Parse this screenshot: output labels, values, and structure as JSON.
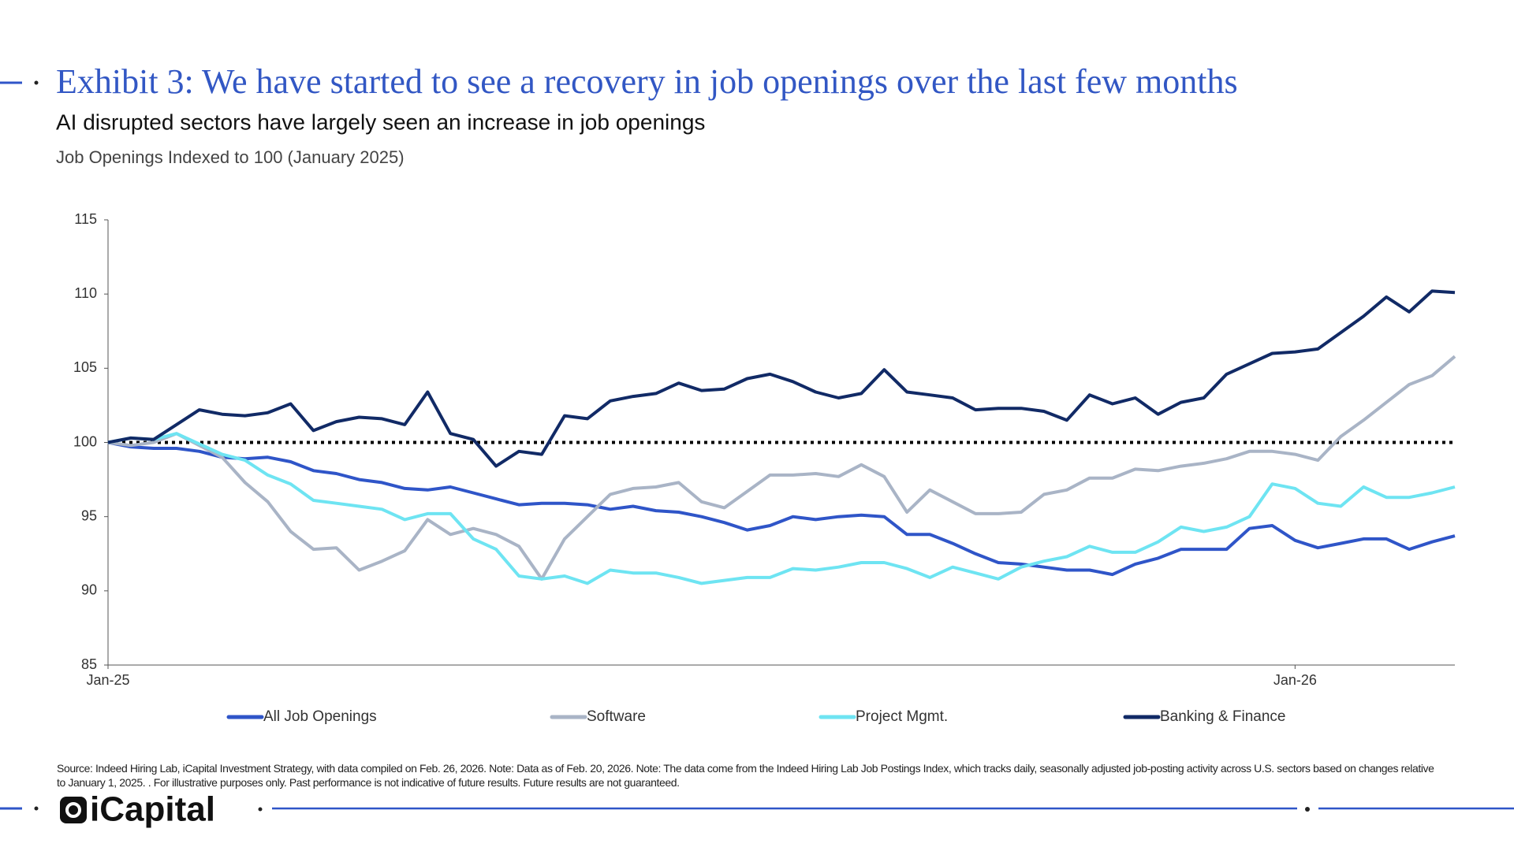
{
  "chart_data": {
    "type": "line",
    "title": "Exhibit 3: We have started to see a recovery in job openings over the last few months",
    "subtitle": "AI disrupted sectors have largely seen an increase in job openings",
    "y_label": "Job Openings Indexed to 100 (January 2025)",
    "categories": [
      "Jan-25",
      null,
      null,
      null,
      null,
      null,
      null,
      null,
      null,
      null,
      null,
      null,
      null,
      null,
      null,
      null,
      null,
      null,
      null,
      null,
      null,
      null,
      null,
      null,
      null,
      null,
      null,
      null,
      null,
      null,
      null,
      null,
      null,
      null,
      null,
      null,
      null,
      null,
      null,
      null,
      null,
      null,
      null,
      null,
      null,
      null,
      null,
      null,
      null,
      null,
      null,
      null,
      "Jan-26",
      null,
      null,
      null,
      null,
      null,
      null,
      null
    ],
    "series": [
      {
        "name": "All Job Openings",
        "color": "#2f55c8",
        "values": [
          100.0,
          99.7,
          99.6,
          99.6,
          99.4,
          99.0,
          98.9,
          99.0,
          98.7,
          98.1,
          97.9,
          97.5,
          97.3,
          96.9,
          96.8,
          97.0,
          96.6,
          96.2,
          95.8,
          95.9,
          95.9,
          95.8,
          95.5,
          95.7,
          95.4,
          95.3,
          95.0,
          94.6,
          94.1,
          94.4,
          95.0,
          94.8,
          95.0,
          95.1,
          95.0,
          93.8,
          93.8,
          93.2,
          92.5,
          91.9,
          91.8,
          91.6,
          91.4,
          91.4,
          91.1,
          91.8,
          92.2,
          92.8,
          92.8,
          92.8,
          94.2,
          94.4,
          93.4,
          92.9,
          93.2,
          93.5,
          93.5,
          92.8,
          93.3,
          93.7
        ]
      },
      {
        "name": "Software",
        "color": "#a9b4c6",
        "values": [
          100.0,
          99.8,
          100.0,
          100.6,
          99.8,
          99.0,
          97.3,
          96.0,
          94.0,
          92.8,
          92.9,
          91.4,
          92.0,
          92.7,
          94.8,
          93.8,
          94.2,
          93.8,
          93.0,
          90.8,
          93.5,
          95.0,
          96.5,
          96.9,
          97.0,
          97.3,
          96.0,
          95.6,
          96.7,
          97.8,
          97.8,
          97.9,
          97.7,
          98.5,
          97.7,
          95.3,
          96.8,
          96.0,
          95.2,
          95.2,
          95.3,
          96.5,
          96.8,
          97.6,
          97.6,
          98.2,
          98.1,
          98.4,
          98.6,
          98.9,
          99.4,
          99.4,
          99.2,
          98.8,
          100.4,
          101.5,
          102.7,
          103.9,
          104.5,
          105.8
        ]
      },
      {
        "name": "Project Mgmt.",
        "color": "#6ee4f2",
        "values": [
          100.0,
          100.3,
          100.2,
          100.6,
          99.9,
          99.2,
          98.8,
          97.8,
          97.2,
          96.1,
          95.9,
          95.7,
          95.5,
          94.8,
          95.2,
          95.2,
          93.5,
          92.8,
          91.0,
          90.8,
          91.0,
          90.5,
          91.4,
          91.2,
          91.2,
          90.9,
          90.5,
          90.7,
          90.9,
          90.9,
          91.5,
          91.4,
          91.6,
          91.9,
          91.9,
          91.5,
          90.9,
          91.6,
          91.2,
          90.8,
          91.6,
          92.0,
          92.3,
          93.0,
          92.6,
          92.6,
          93.3,
          94.3,
          94.0,
          94.3,
          95.0,
          97.2,
          96.9,
          95.9,
          95.7,
          97.0,
          96.3,
          96.3,
          96.6,
          97.0
        ]
      },
      {
        "name": "Banking & Finance",
        "color": "#112a66",
        "values": [
          100.0,
          100.3,
          100.2,
          101.2,
          102.2,
          101.9,
          101.8,
          102.0,
          102.6,
          100.8,
          101.4,
          101.7,
          101.6,
          101.2,
          103.4,
          100.6,
          100.2,
          98.4,
          99.4,
          99.2,
          101.8,
          101.6,
          102.8,
          103.1,
          103.3,
          104.0,
          103.5,
          103.6,
          104.3,
          104.6,
          104.1,
          103.4,
          103.0,
          103.3,
          104.9,
          103.4,
          103.2,
          103.0,
          102.2,
          102.3,
          102.3,
          102.1,
          101.5,
          103.2,
          102.6,
          103.0,
          101.9,
          102.7,
          103.0,
          104.6,
          105.3,
          106.0,
          106.1,
          106.3,
          107.4,
          108.5,
          109.8,
          108.8,
          110.2,
          110.1
        ]
      }
    ],
    "ylim": [
      85,
      115
    ],
    "yticks": [
      85,
      90,
      95,
      100,
      105,
      110,
      115
    ],
    "reference_line": 100,
    "grid": false,
    "legend": "bottom"
  },
  "source": "Source: Indeed Hiring Lab, iCapital Investment Strategy, with data compiled on Feb. 26, 2026. Note: Data as of Feb. 20, 2026. Note: The data come from the Indeed Hiring Lab Job Postings Index, which tracks daily, seasonally adjusted job-posting activity across U.S. sectors based on changes relative to January 1, 2025. . For illustrative purposes only. Past performance is not indicative of future results. Future results are not guaranteed.",
  "brand": "iCapital"
}
